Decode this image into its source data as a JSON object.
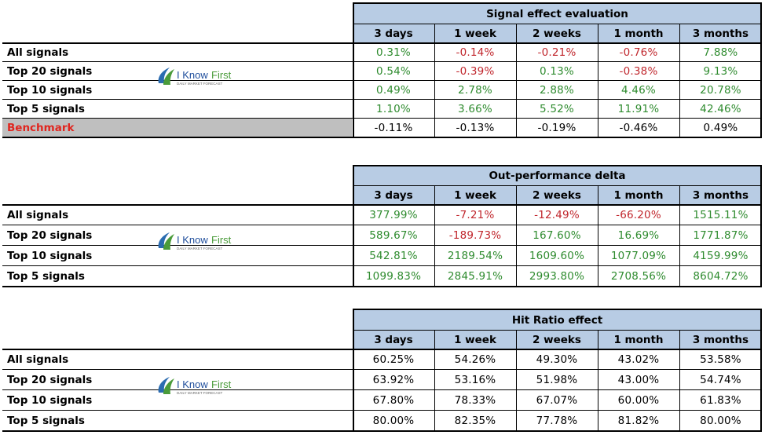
{
  "colors": {
    "header_bg": "#b8cce4",
    "positive": "#2e8b2e",
    "negative": "#c0262c",
    "benchmark_bg": "#bfbfbf",
    "benchmark_text": "#e0261f"
  },
  "columns": [
    "3 days",
    "1 week",
    "2 weeks",
    "1 month",
    "3 months"
  ],
  "logo": {
    "text_i": "I",
    "text_know": "Know",
    "text_first": "First",
    "tagline": "DAILY MARKET FORECAST"
  },
  "tables": [
    {
      "title": "Signal effect evaluation",
      "rows": [
        {
          "label": "All signals",
          "values": [
            "0.31%",
            "-0.14%",
            "-0.21%",
            "-0.76%",
            "7.88%"
          ]
        },
        {
          "label": "Top 20 signals",
          "values": [
            "0.54%",
            "-0.39%",
            "0.13%",
            "-0.38%",
            "9.13%"
          ]
        },
        {
          "label": "Top 10 signals",
          "values": [
            "0.49%",
            "2.78%",
            "2.88%",
            "4.46%",
            "20.78%"
          ]
        },
        {
          "label": "Top 5 signals",
          "values": [
            "1.10%",
            "3.66%",
            "5.52%",
            "11.91%",
            "42.46%"
          ]
        },
        {
          "label": "Benchmark",
          "values": [
            "-0.11%",
            "-0.13%",
            "-0.19%",
            "-0.46%",
            "0.49%"
          ]
        }
      ]
    },
    {
      "title": "Out-performance delta",
      "rows": [
        {
          "label": "All signals",
          "values": [
            "377.99%",
            "-7.21%",
            "-12.49%",
            "-66.20%",
            "1515.11%"
          ]
        },
        {
          "label": "Top 20 signals",
          "values": [
            "589.67%",
            "-189.73%",
            "167.60%",
            "16.69%",
            "1771.87%"
          ]
        },
        {
          "label": "Top 10 signals",
          "values": [
            "542.81%",
            "2189.54%",
            "1609.60%",
            "1077.09%",
            "4159.99%"
          ]
        },
        {
          "label": "Top 5 signals",
          "values": [
            "1099.83%",
            "2845.91%",
            "2993.80%",
            "2708.56%",
            "8604.72%"
          ]
        }
      ]
    },
    {
      "title": "Hit Ratio effect",
      "rows": [
        {
          "label": "All signals",
          "values": [
            "60.25%",
            "54.26%",
            "49.30%",
            "43.02%",
            "53.58%"
          ]
        },
        {
          "label": "Top 20 signals",
          "values": [
            "63.92%",
            "53.16%",
            "51.98%",
            "43.00%",
            "54.74%"
          ]
        },
        {
          "label": "Top 10 signals",
          "values": [
            "67.80%",
            "78.33%",
            "67.07%",
            "60.00%",
            "61.83%"
          ]
        },
        {
          "label": "Top 5 signals",
          "values": [
            "80.00%",
            "82.35%",
            "77.78%",
            "81.82%",
            "80.00%"
          ]
        }
      ]
    }
  ]
}
